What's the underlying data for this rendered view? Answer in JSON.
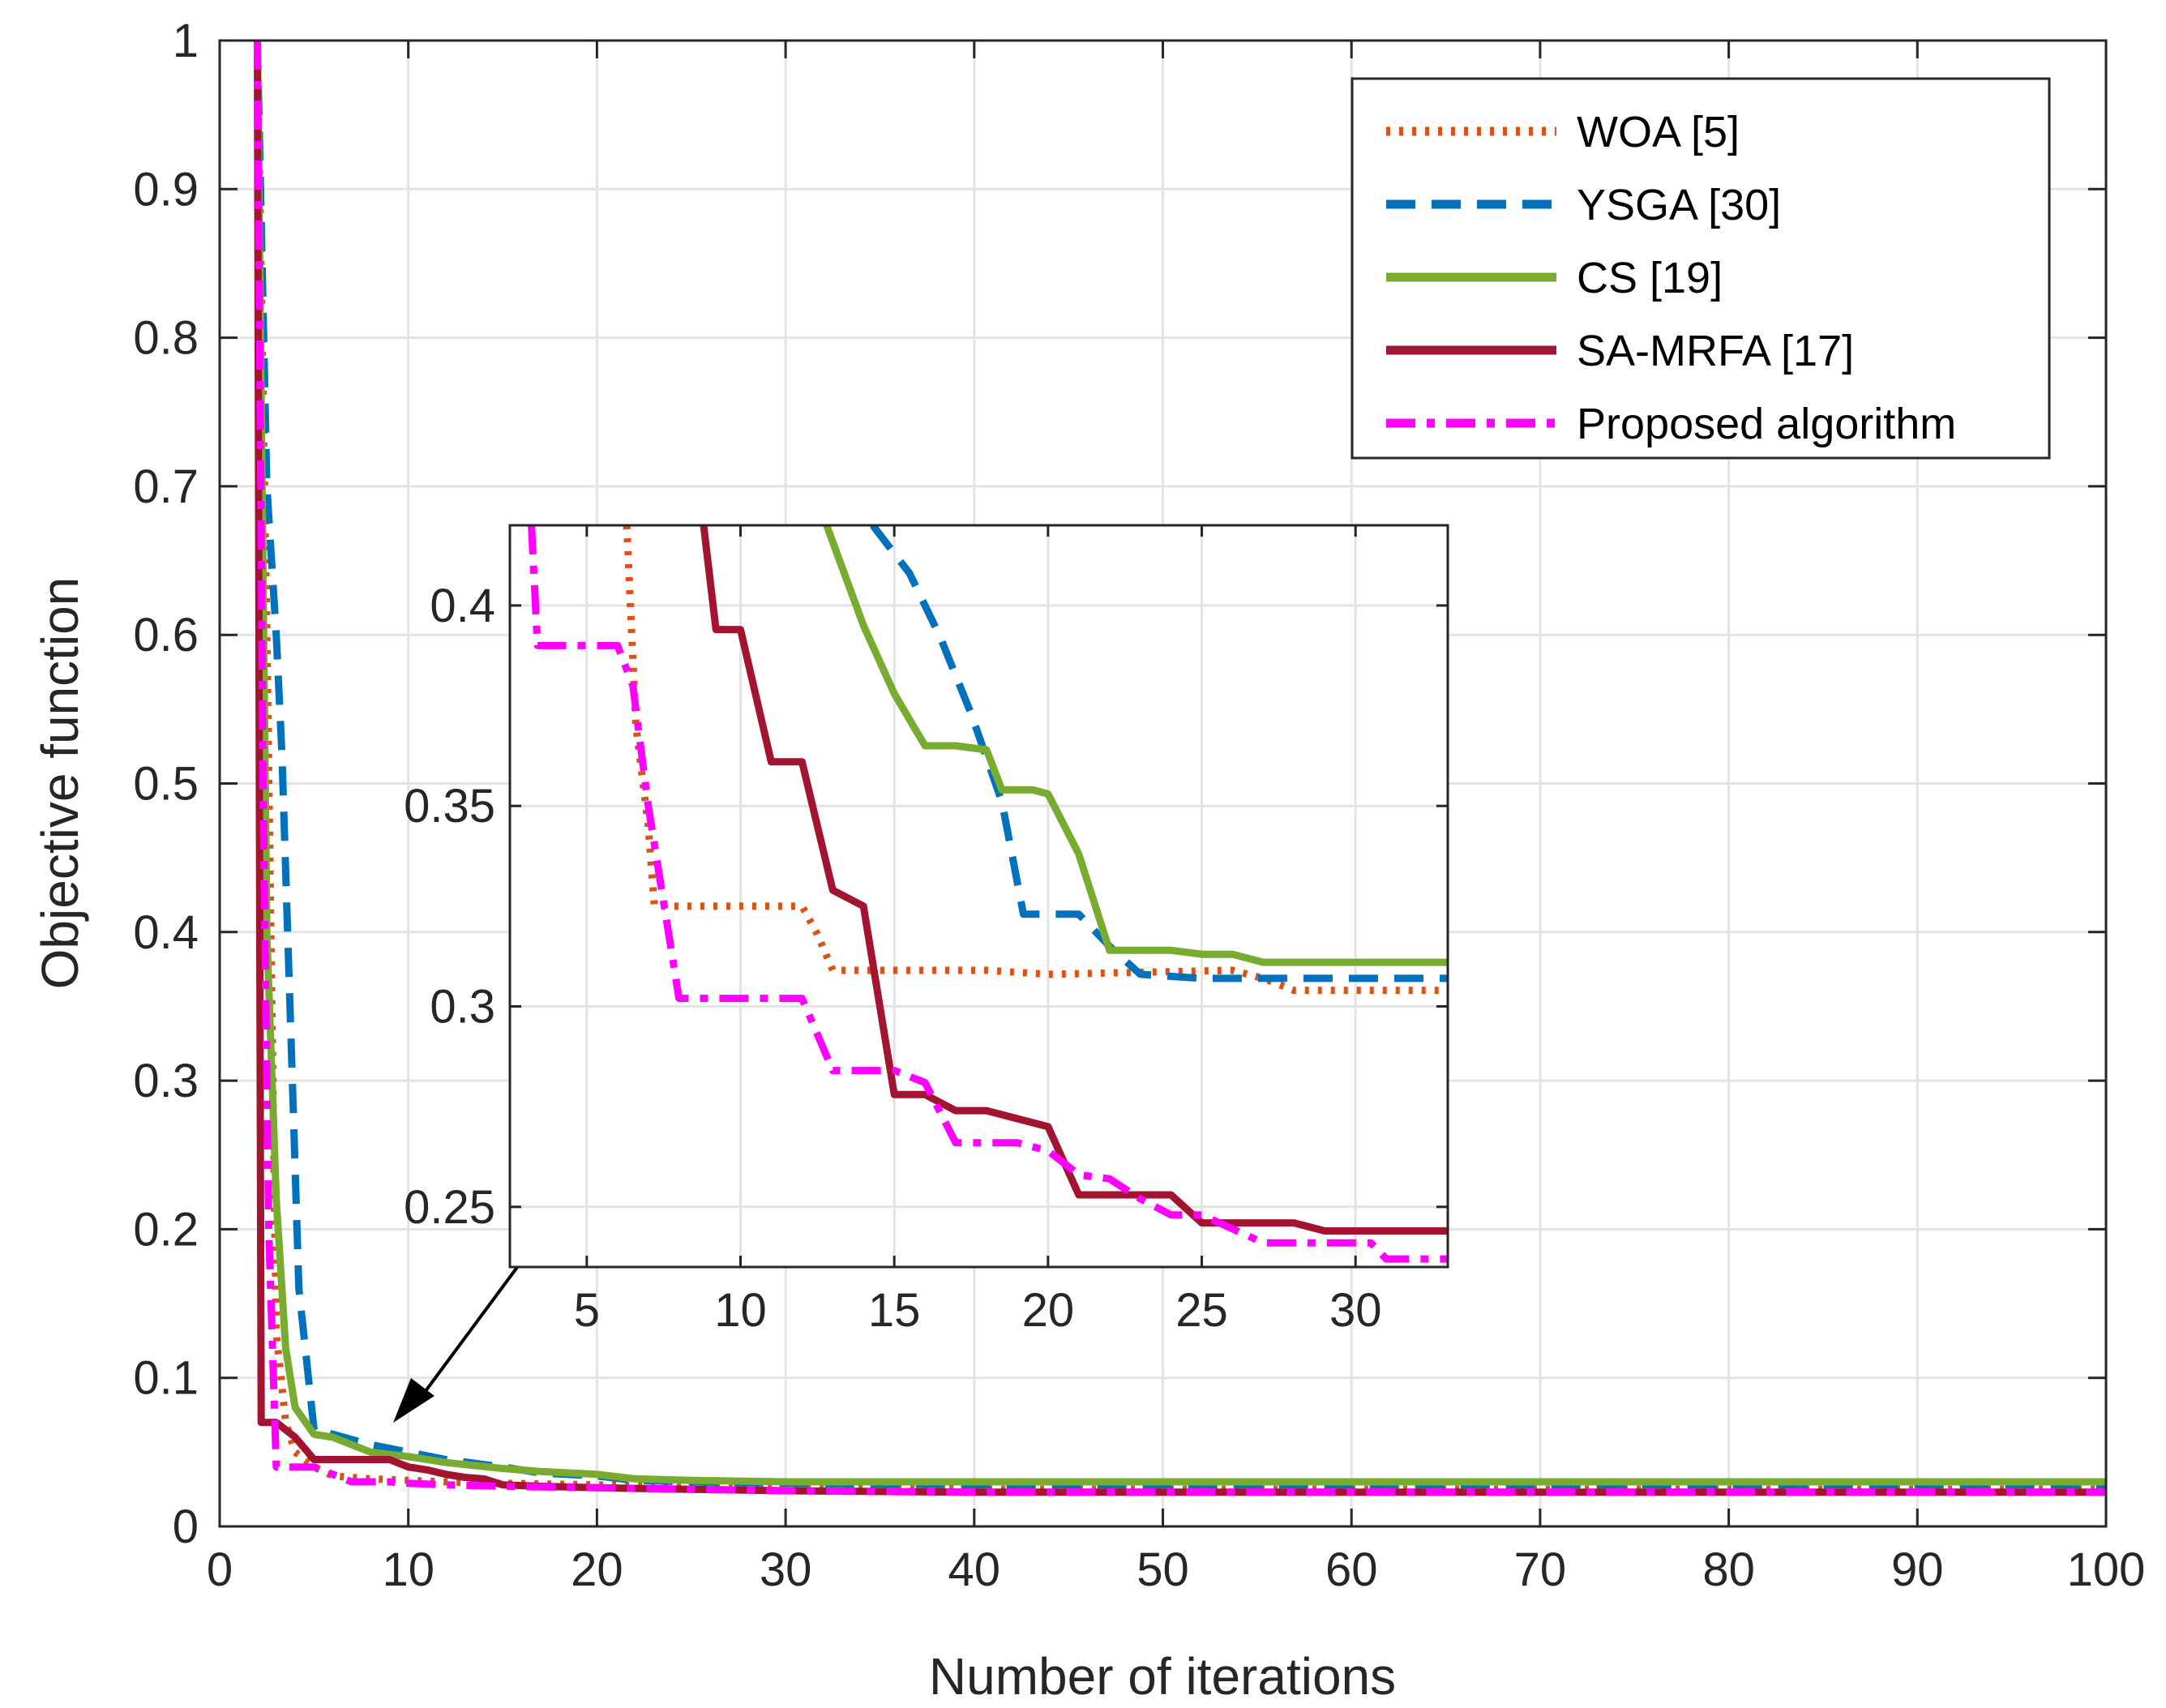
{
  "chart_data": [
    {
      "type": "line",
      "title": "",
      "xlabel": "Number of iterations",
      "ylabel": "Objective function",
      "xlim": [
        0,
        100
      ],
      "ylim": [
        0,
        1
      ],
      "xticks": [
        0,
        10,
        20,
        30,
        40,
        50,
        60,
        70,
        80,
        90,
        100
      ],
      "yticks": [
        0,
        0.1,
        0.2,
        0.3,
        0.4,
        0.5,
        0.6,
        0.7,
        0.8,
        0.9,
        1
      ],
      "xtick_labels": [
        "0",
        "10",
        "20",
        "30",
        "40",
        "50",
        "60",
        "70",
        "80",
        "90",
        "100"
      ],
      "ytick_labels": [
        "0",
        "0.1",
        "0.2",
        "0.3",
        "0.4",
        "0.5",
        "0.6",
        "0.7",
        "0.8",
        "0.9",
        "1"
      ],
      "grid": true,
      "legend_position": "top-right",
      "series": [
        {
          "name": "WOA [5]",
          "color": "#D95319",
          "style": "dotted",
          "x": [
            2,
            2.5,
            3,
            3.5,
            4,
            5,
            6,
            8,
            10,
            12,
            15,
            20,
            25,
            30,
            40,
            60,
            80,
            100
          ],
          "y": [
            1.0,
            0.6,
            0.13,
            0.07,
            0.05,
            0.04,
            0.034,
            0.032,
            0.031,
            0.03,
            0.029,
            0.028,
            0.027,
            0.026,
            0.025,
            0.025,
            0.025,
            0.025
          ]
        },
        {
          "name": "YSGA [30]",
          "color": "#0072BD",
          "style": "dashed",
          "x": [
            2,
            2.5,
            3,
            3.3,
            3.6,
            3.9,
            4.2,
            5,
            6,
            8,
            10,
            12,
            15,
            17,
            20,
            22,
            25,
            30,
            40,
            60,
            80,
            100
          ],
          "y": [
            1.0,
            0.7,
            0.6,
            0.52,
            0.4,
            0.28,
            0.16,
            0.065,
            0.062,
            0.055,
            0.05,
            0.045,
            0.04,
            0.036,
            0.034,
            0.031,
            0.03,
            0.029,
            0.028,
            0.028,
            0.028,
            0.028
          ]
        },
        {
          "name": "CS [19]",
          "color": "#77AC30",
          "style": "solid",
          "x": [
            2,
            2.5,
            3,
            3.5,
            4,
            5,
            6,
            7,
            8,
            10,
            12,
            15,
            17,
            20,
            22,
            25,
            30,
            40,
            60,
            80,
            100
          ],
          "y": [
            1.0,
            0.4,
            0.22,
            0.12,
            0.08,
            0.062,
            0.06,
            0.055,
            0.05,
            0.047,
            0.043,
            0.039,
            0.037,
            0.035,
            0.032,
            0.031,
            0.03,
            0.03,
            0.03,
            0.03,
            0.03
          ]
        },
        {
          "name": "SA-MRFA [17]",
          "color": "#A2142F",
          "style": "solid",
          "x": [
            2,
            2.1,
            2.2,
            3,
            4,
            5,
            6,
            7,
            8,
            9,
            10,
            11,
            12,
            13,
            14,
            15,
            17,
            20,
            25,
            30,
            40,
            60,
            80,
            100
          ],
          "y": [
            1.0,
            0.5,
            0.07,
            0.07,
            0.06,
            0.045,
            0.045,
            0.045,
            0.045,
            0.045,
            0.04,
            0.038,
            0.035,
            0.033,
            0.032,
            0.028,
            0.027,
            0.026,
            0.025,
            0.024,
            0.023,
            0.023,
            0.023,
            0.023
          ]
        },
        {
          "name": "Proposed algorithm",
          "color": "#FF00FF",
          "style": "dashdot",
          "x": [
            2,
            2.3,
            2.6,
            3,
            4,
            5,
            6,
            7,
            8,
            9,
            10,
            12,
            15,
            20,
            25,
            30,
            40,
            60,
            80,
            100
          ],
          "y": [
            1.0,
            0.5,
            0.2,
            0.04,
            0.04,
            0.04,
            0.035,
            0.03,
            0.03,
            0.03,
            0.029,
            0.028,
            0.027,
            0.026,
            0.025,
            0.024,
            0.023,
            0.023,
            0.023,
            0.023
          ]
        }
      ]
    },
    {
      "type": "line",
      "title": "",
      "xlabel": "",
      "ylabel": "",
      "xlim": [
        2.5,
        33
      ],
      "ylim": [
        0.235,
        0.42
      ],
      "xticks": [
        5,
        10,
        15,
        20,
        25,
        30
      ],
      "yticks": [
        0.25,
        0.3,
        0.35,
        0.4
      ],
      "xtick_labels": [
        "5",
        "10",
        "15",
        "20",
        "25",
        "30"
      ],
      "ytick_labels": [
        "0.25",
        "0.3",
        "0.35",
        "0.4"
      ],
      "grid": true,
      "annotation": "arrow from inset to curves near x = 10",
      "series": [
        {
          "name": "WOA [5]",
          "color": "#D95319",
          "style": "dotted",
          "x": [
            6.3,
            6.6,
            7.0,
            7.2,
            12.0,
            12.5,
            13.0,
            18.0,
            20.0,
            26.0,
            27.0,
            28.0,
            33.0
          ],
          "y": [
            0.42,
            0.37,
            0.345,
            0.325,
            0.325,
            0.318,
            0.309,
            0.309,
            0.308,
            0.309,
            0.307,
            0.304,
            0.304
          ]
        },
        {
          "name": "YSGA [30]",
          "color": "#0072BD",
          "style": "dashed",
          "x": [
            14.3,
            15.5,
            16.5,
            17.5,
            18.5,
            19.2,
            20.5,
            21.0,
            22.0,
            23.0,
            25.0,
            27.0,
            33.0
          ],
          "y": [
            0.42,
            0.408,
            0.392,
            0.373,
            0.351,
            0.323,
            0.323,
            0.323,
            0.315,
            0.308,
            0.307,
            0.307,
            0.307
          ]
        },
        {
          "name": "CS [19]",
          "color": "#77AC30",
          "style": "solid",
          "x": [
            12.8,
            14.0,
            15.0,
            16.0,
            17.0,
            18.0,
            18.5,
            19.5,
            20.0,
            21.0,
            22.0,
            23.0,
            24.0,
            25.0,
            26.0,
            27.0,
            28.0,
            33.0
          ],
          "y": [
            0.42,
            0.395,
            0.378,
            0.365,
            0.365,
            0.364,
            0.354,
            0.354,
            0.353,
            0.338,
            0.314,
            0.314,
            0.314,
            0.313,
            0.313,
            0.311,
            0.311,
            0.311
          ]
        },
        {
          "name": "SA-MRFA [17]",
          "color": "#A2142F",
          "style": "solid",
          "x": [
            8.8,
            9.2,
            10.0,
            11.0,
            12.0,
            13.0,
            14.0,
            15.0,
            16.0,
            17.0,
            18.0,
            20.0,
            21.0,
            22.0,
            23.0,
            24.0,
            25.0,
            26.0,
            27.0,
            28.0,
            29.0,
            33.0
          ],
          "y": [
            0.42,
            0.394,
            0.394,
            0.361,
            0.361,
            0.329,
            0.325,
            0.278,
            0.278,
            0.274,
            0.274,
            0.27,
            0.253,
            0.253,
            0.253,
            0.253,
            0.246,
            0.246,
            0.246,
            0.246,
            0.244,
            0.244
          ]
        },
        {
          "name": "Proposed algorithm",
          "color": "#FF00FF",
          "style": "dashdot",
          "x": [
            3.2,
            3.4,
            6.0,
            6.5,
            7.0,
            8.0,
            12.0,
            13.0,
            14.0,
            15.0,
            16.0,
            17.0,
            19.0,
            20.0,
            21.0,
            22.0,
            23.0,
            24.0,
            25.0,
            27.0,
            29.0,
            30.5,
            31.0,
            33.0
          ],
          "y": [
            0.42,
            0.39,
            0.39,
            0.38,
            0.35,
            0.302,
            0.302,
            0.284,
            0.284,
            0.284,
            0.281,
            0.266,
            0.266,
            0.264,
            0.258,
            0.257,
            0.252,
            0.248,
            0.248,
            0.241,
            0.241,
            0.241,
            0.237,
            0.237
          ]
        }
      ]
    }
  ]
}
